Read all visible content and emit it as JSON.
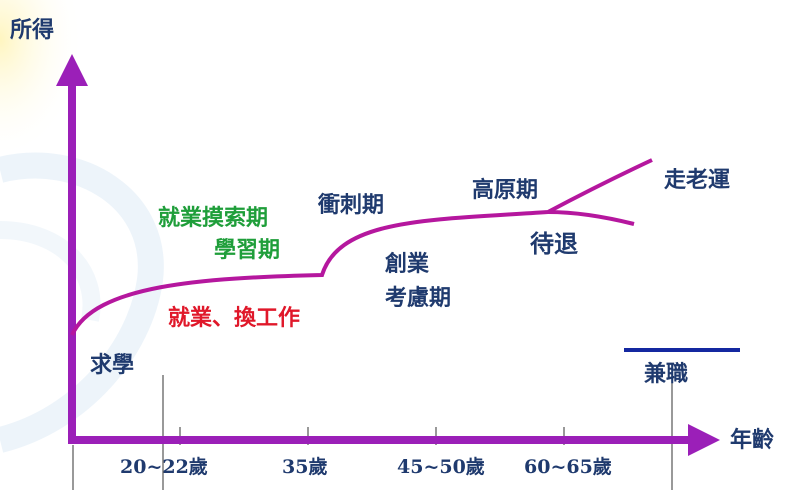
{
  "axes": {
    "y_label": "所得",
    "x_label": "年齡",
    "x_ticks": [
      "20~22歲",
      "35歲",
      "45~50歲",
      "60~65歲"
    ]
  },
  "stages": {
    "study": "求學",
    "explore_line1": "就業摸索期",
    "explore_line2": "學習期",
    "job_change": "就業、換工作",
    "sprint": "衝刺期",
    "startup_line1": "創業",
    "startup_line2": "考慮期",
    "plateau": "高原期",
    "good_fortune": "走老運",
    "await_retire": "待退",
    "part_time": "兼職"
  },
  "colors": {
    "curve": "#b5179e",
    "axis": "#9b1fb8",
    "stage_text": "#1f3a6e",
    "green_text": "#1f9e3a",
    "red_text": "#e0182a",
    "part_time_line": "#1428a0"
  }
}
